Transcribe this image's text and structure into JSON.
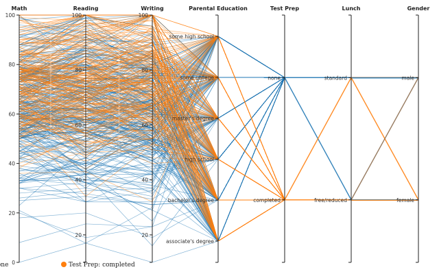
{
  "chart_data": {
    "type": "parallel_coordinates",
    "title": "",
    "axes": [
      {
        "name": "Math",
        "kind": "numeric",
        "range": [
          0,
          100
        ],
        "ticks": [
          0,
          20,
          40,
          60,
          80,
          100
        ]
      },
      {
        "name": "Reading",
        "kind": "numeric",
        "range": [
          10,
          100
        ],
        "ticks": [
          20,
          40,
          60,
          80,
          100
        ]
      },
      {
        "name": "Writing",
        "kind": "numeric",
        "range": [
          10,
          100
        ],
        "ticks": [
          20,
          40,
          60,
          80,
          100
        ]
      },
      {
        "name": "Parental Education",
        "kind": "categorical",
        "categories": [
          "some high school",
          "some college",
          "master's degree",
          "high school",
          "bachelor's degree",
          "associate's degree"
        ]
      },
      {
        "name": "Test Prep",
        "kind": "categorical",
        "categories": [
          "none",
          "completed"
        ]
      },
      {
        "name": "Lunch",
        "kind": "categorical",
        "categories": [
          "standard",
          "free/reduced"
        ]
      },
      {
        "name": "Gender",
        "kind": "categorical",
        "categories": [
          "male",
          "female"
        ]
      }
    ],
    "series": [
      {
        "name": "Test Prep: none",
        "color": "#1f77b4",
        "approx_share": 0.64
      },
      {
        "name": "Test Prep: completed",
        "color": "#ff7f0e",
        "approx_share": 0.36
      }
    ],
    "connections": [
      {
        "from": "Lunch: standard",
        "to": "Gender: male",
        "colors": [
          "#8c6d4f",
          "#1f77b4"
        ]
      },
      {
        "from": "Lunch: standard",
        "to": "Gender: female",
        "colors": [
          "#ff7f0e"
        ]
      },
      {
        "from": "Lunch: free/reduced",
        "to": "Gender: male",
        "colors": [
          "#8c6d4f"
        ]
      },
      {
        "from": "Lunch: free/reduced",
        "to": "Gender: female",
        "colors": [
          "#1f77b4",
          "#ff7f0e"
        ]
      }
    ],
    "legend": {
      "placement": "bottom-left",
      "entries": [
        "Test Prep: none",
        "Test Prep: completed"
      ]
    }
  }
}
